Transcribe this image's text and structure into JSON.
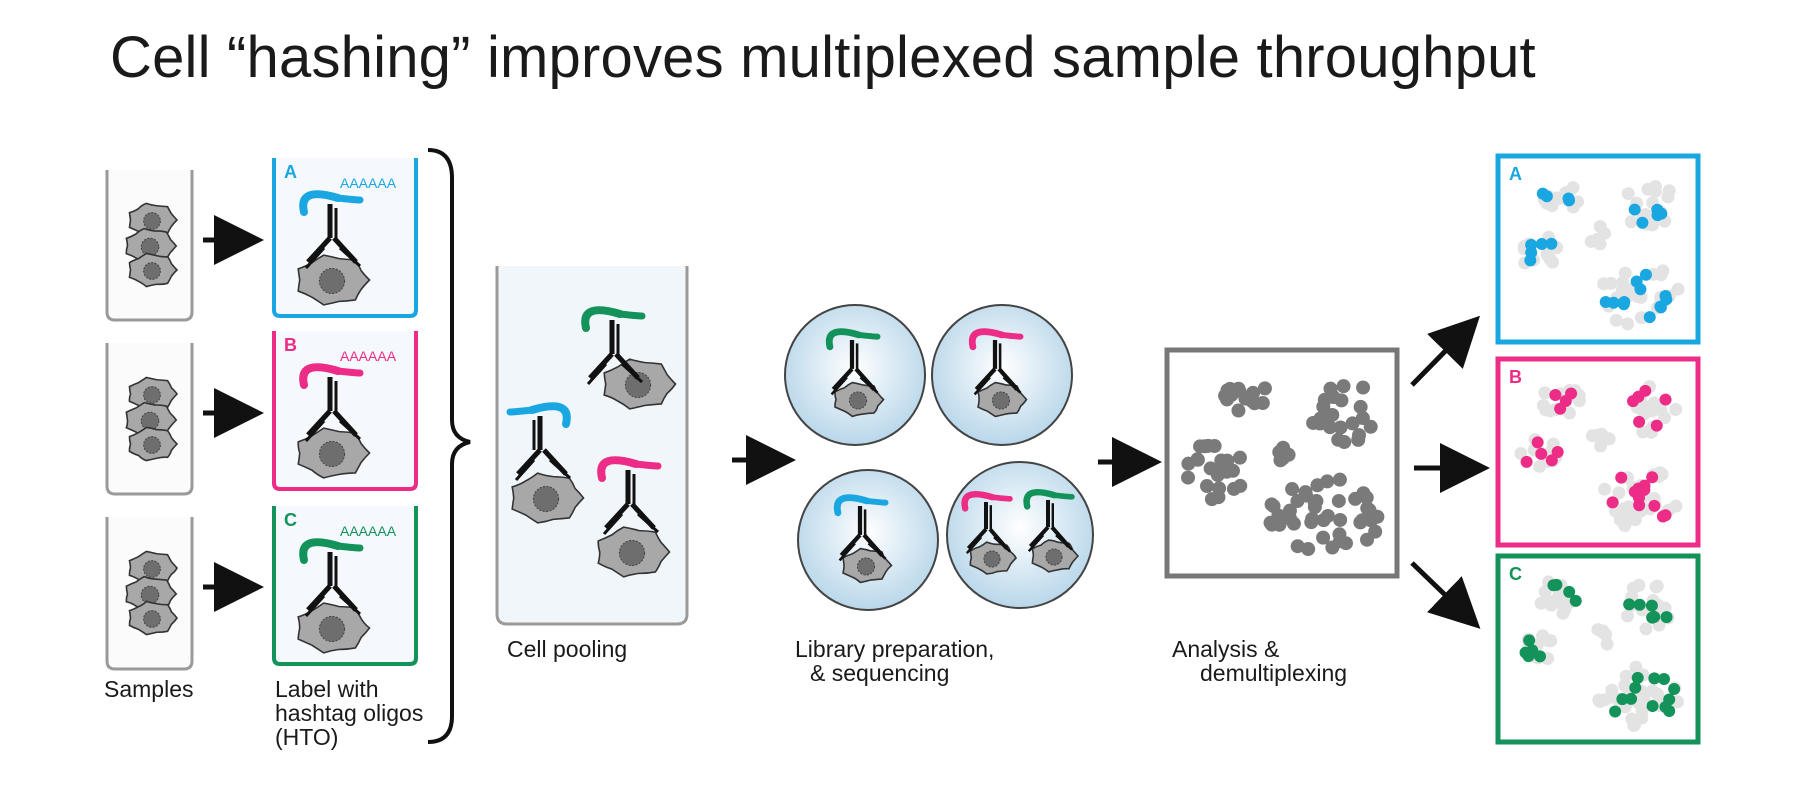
{
  "slide": {
    "title": "Cell “hashing” improves multiplexed sample throughput"
  },
  "colors": {
    "sample_a": "#1aa7e1",
    "sample_b": "#ec2c86",
    "sample_c": "#13925a",
    "tube_outline": "#9a9a9a",
    "cell_fill": "#a8a8a8",
    "nucleus_fill": "#6e6e6e",
    "antibody": "#111111",
    "droplet_fill": "#c7dfee",
    "cluster_gray": "#7a7a7a",
    "cluster_light": "#e3e3e3"
  },
  "labels": {
    "samples": "Samples",
    "label_hto": [
      "Label with",
      "hashtag oligos",
      "(HTO)"
    ],
    "cell_pooling": "Cell pooling",
    "library": [
      "Library preparation,",
      "& sequencing"
    ],
    "analysis": [
      "Analysis &",
      "demultiplexing"
    ]
  },
  "hto_panels": [
    {
      "letter": "A",
      "polyA": "AAAAAA",
      "color_key": "sample_a"
    },
    {
      "letter": "B",
      "polyA": "AAAAAA",
      "color_key": "sample_b"
    },
    {
      "letter": "C",
      "polyA": "AAAAAA",
      "color_key": "sample_c"
    }
  ],
  "result_panels": [
    {
      "letter": "A",
      "color_key": "sample_a"
    },
    {
      "letter": "B",
      "color_key": "sample_b"
    },
    {
      "letter": "C",
      "color_key": "sample_c"
    }
  ]
}
